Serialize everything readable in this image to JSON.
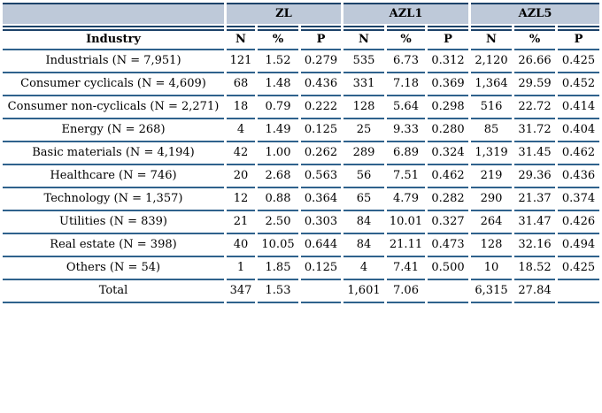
{
  "table": {
    "corner_label": "",
    "column_groups": [
      {
        "label": "ZL"
      },
      {
        "label": "AZL1"
      },
      {
        "label": "AZL5"
      }
    ],
    "industry_header": "Industry",
    "sub_headers": [
      "N",
      "%",
      "P"
    ],
    "rows": [
      {
        "industry": "Industrials (N = 7,951)",
        "values": [
          "121",
          "1.52",
          "0.279",
          "535",
          "6.73",
          "0.312",
          "2,120",
          "26.66",
          "0.425"
        ]
      },
      {
        "industry": "Consumer cyclicals (N = 4,609)",
        "values": [
          "68",
          "1.48",
          "0.436",
          "331",
          "7.18",
          "0.369",
          "1,364",
          "29.59",
          "0.452"
        ]
      },
      {
        "industry": "Consumer non-cyclicals (N = 2,271)",
        "values": [
          "18",
          "0.79",
          "0.222",
          "128",
          "5.64",
          "0.298",
          "516",
          "22.72",
          "0.414"
        ]
      },
      {
        "industry": "Energy (N = 268)",
        "values": [
          "4",
          "1.49",
          "0.125",
          "25",
          "9.33",
          "0.280",
          "85",
          "31.72",
          "0.404"
        ]
      },
      {
        "industry": "Basic materials (N = 4,194)",
        "values": [
          "42",
          "1.00",
          "0.262",
          "289",
          "6.89",
          "0.324",
          "1,319",
          "31.45",
          "0.462"
        ]
      },
      {
        "industry": "Healthcare (N = 746)",
        "values": [
          "20",
          "2.68",
          "0.563",
          "56",
          "7.51",
          "0.462",
          "219",
          "29.36",
          "0.436"
        ]
      },
      {
        "industry": "Technology (N = 1,357)",
        "values": [
          "12",
          "0.88",
          "0.364",
          "65",
          "4.79",
          "0.282",
          "290",
          "21.37",
          "0.374"
        ]
      },
      {
        "industry": "Utilities (N = 839)",
        "values": [
          "21",
          "2.50",
          "0.303",
          "84",
          "10.01",
          "0.327",
          "264",
          "31.47",
          "0.426"
        ]
      },
      {
        "industry": "Real estate (N = 398)",
        "values": [
          "40",
          "10.05",
          "0.644",
          "84",
          "21.11",
          "0.473",
          "128",
          "32.16",
          "0.494"
        ]
      },
      {
        "industry": "Others (N = 54)",
        "values": [
          "1",
          "1.85",
          "0.125",
          "4",
          "7.41",
          "0.500",
          "10",
          "18.52",
          "0.425"
        ]
      },
      {
        "industry": "Total",
        "values": [
          "347",
          "1.53",
          "",
          "1,601",
          "7.06",
          "",
          "6,315",
          "27.84",
          ""
        ]
      }
    ],
    "colors": {
      "header_fill": "#bec9d9",
      "outer_border": "#1c4269",
      "row_line": "#2f628c"
    }
  }
}
